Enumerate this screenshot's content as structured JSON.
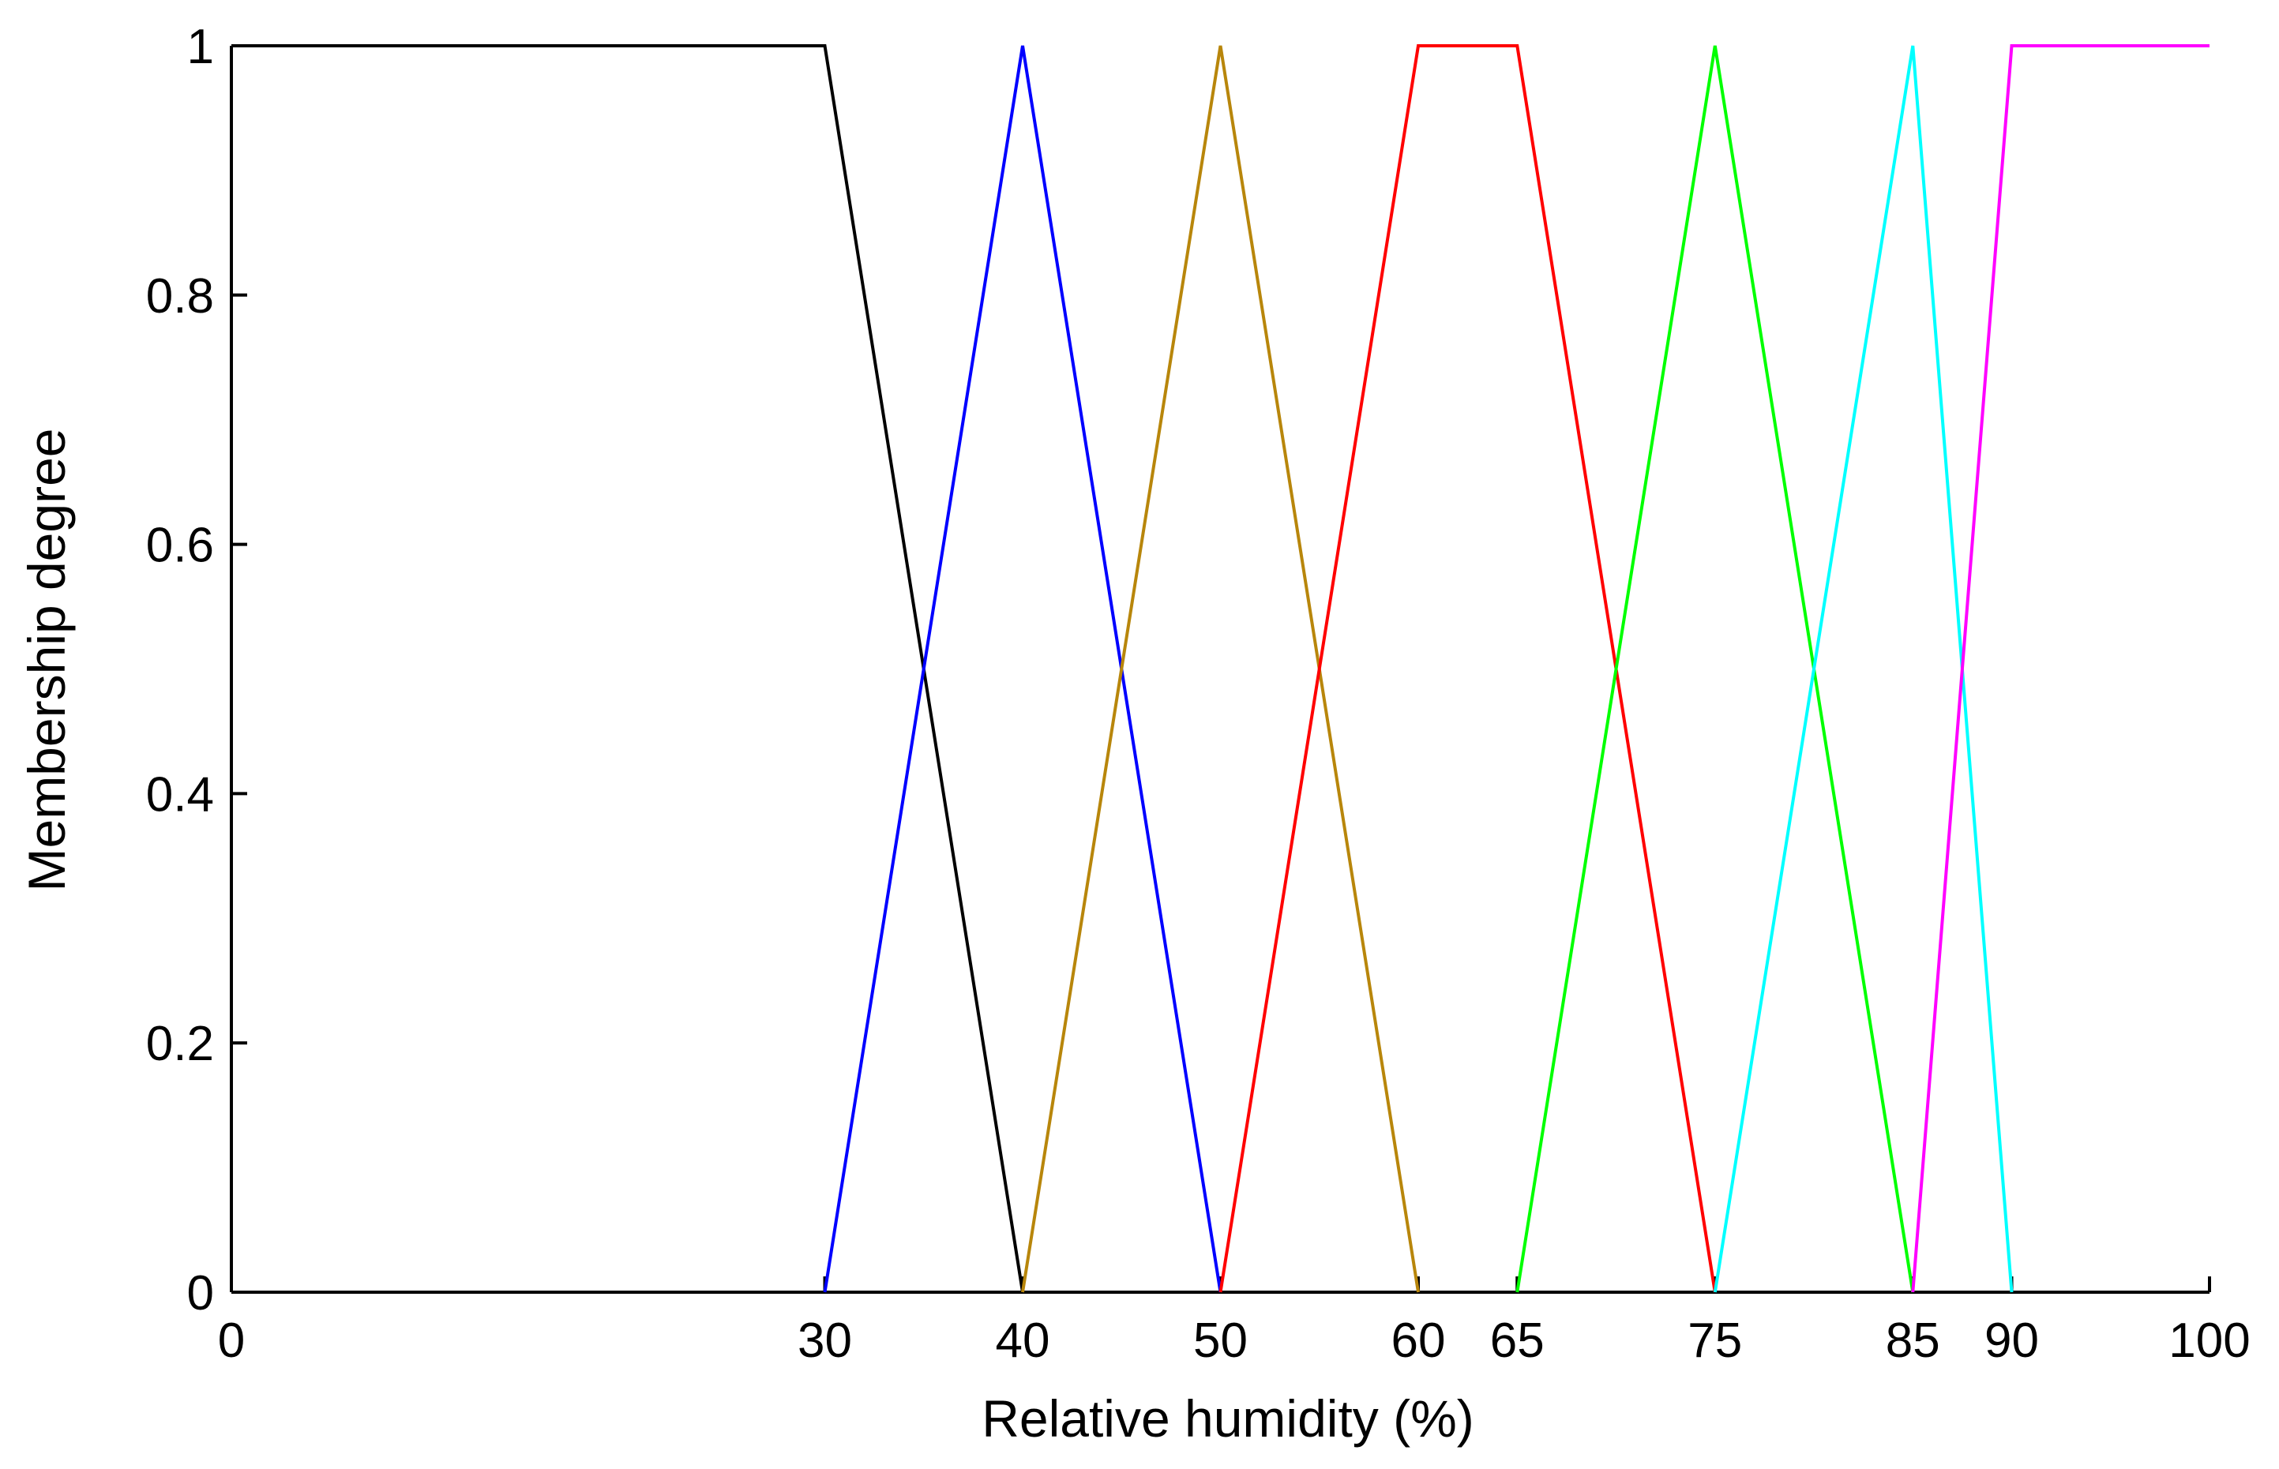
{
  "chart_data": {
    "type": "line",
    "title": "",
    "xlabel": "Relative humidity (%)",
    "ylabel": "Membership degree",
    "xlim": [
      0,
      100
    ],
    "ylim": [
      0,
      1
    ],
    "x_ticks": [
      0,
      30,
      40,
      50,
      60,
      65,
      75,
      85,
      90,
      100
    ],
    "y_ticks": [
      0,
      0.2,
      0.4,
      0.6,
      0.8,
      1
    ],
    "y_tick_labels": [
      "0",
      "0.2",
      "0.4",
      "0.6",
      "0.8",
      "1"
    ],
    "grid": false,
    "legend": "none",
    "series": [
      {
        "color": "#000000",
        "x": [
          0,
          30,
          40
        ],
        "y": [
          1,
          1,
          0
        ]
      },
      {
        "color": "#0000ff",
        "x": [
          30,
          40,
          50
        ],
        "y": [
          0,
          1,
          0
        ]
      },
      {
        "color": "#b8860b",
        "x": [
          40,
          50,
          60
        ],
        "y": [
          0,
          1,
          0
        ]
      },
      {
        "color": "#ff0000",
        "x": [
          50,
          60,
          65,
          75
        ],
        "y": [
          0,
          1,
          1,
          0
        ]
      },
      {
        "color": "#00ff00",
        "x": [
          65,
          75,
          85
        ],
        "y": [
          0,
          1,
          0
        ]
      },
      {
        "color": "#00ffff",
        "x": [
          75,
          85,
          90
        ],
        "y": [
          0,
          1,
          0
        ]
      },
      {
        "color": "#ff00ff",
        "x": [
          85,
          90,
          100
        ],
        "y": [
          0,
          1,
          1
        ]
      }
    ]
  }
}
